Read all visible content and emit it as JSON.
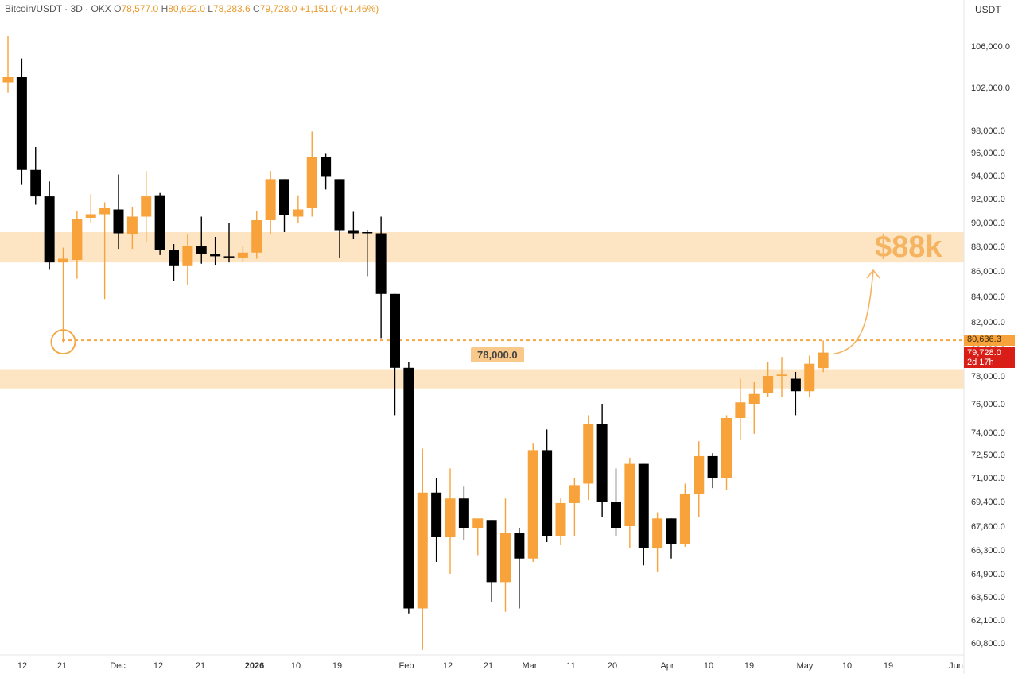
{
  "header": {
    "symbol": "Bitcoin/USDT · 3D · OKX",
    "o_label": "O",
    "o_value": "78,577.0",
    "h_label": "H",
    "h_value": "80,622.0",
    "l_label": "L",
    "l_value": "78,283.6",
    "c_label": "C",
    "c_value": "79,728.0",
    "change": "+1,151.0 (+1.46%)"
  },
  "axis_unit": "USDT",
  "annotations": {
    "target_text": "$88k",
    "level_label": "78,000.0",
    "price_tag_high": "80,636.3",
    "price_tag_last": "79,728.0",
    "countdown": "2d 17h"
  },
  "colors": {
    "up": "#f7a23a",
    "down": "#000000",
    "zone": "#fde5c4",
    "dotted": "#f3a846",
    "last_tag": "#d91e18"
  },
  "chart_data": {
    "type": "candlestick",
    "y_ticks": [
      "106,000.0",
      "102,000.0",
      "98,000.0",
      "96,000.0",
      "94,000.0",
      "92,000.0",
      "90,000.0",
      "88,000.0",
      "86,000.0",
      "84,000.0",
      "82,000.0",
      "80,000.0",
      "78,000.0",
      "76,000.0",
      "74,000.0",
      "72,500.0",
      "71,000.0",
      "69,400.0",
      "67,800.0",
      "66,300.0",
      "64,900.0",
      "63,500.0",
      "62,100.0",
      "60,800.0"
    ],
    "x_ticks": [
      "12",
      "21",
      "Dec",
      "12",
      "21",
      "2026",
      "10",
      "19",
      "Feb",
      "12",
      "21",
      "Mar",
      "11",
      "20",
      "Apr",
      "10",
      "19",
      "May",
      "10",
      "19",
      "Jun"
    ],
    "zones": [
      {
        "from": 86700,
        "to": 89200
      },
      {
        "from": 77100,
        "to": 78500
      }
    ],
    "dotted_level": 80636.3,
    "target": 88000,
    "candles": [
      {
        "o": 102500,
        "h": 107000,
        "l": 101500,
        "c": 103000
      },
      {
        "o": 103000,
        "h": 104800,
        "l": 93200,
        "c": 94500
      },
      {
        "o": 94500,
        "h": 96500,
        "l": 91500,
        "c": 92200
      },
      {
        "o": 92200,
        "h": 93500,
        "l": 86100,
        "c": 86700
      },
      {
        "o": 86700,
        "h": 87900,
        "l": 80500,
        "c": 87000
      },
      {
        "o": 86900,
        "h": 91000,
        "l": 85400,
        "c": 90300
      },
      {
        "o": 90400,
        "h": 92400,
        "l": 90000,
        "c": 90700
      },
      {
        "o": 90700,
        "h": 91700,
        "l": 83800,
        "c": 91200
      },
      {
        "o": 91100,
        "h": 94100,
        "l": 87800,
        "c": 89100
      },
      {
        "o": 89000,
        "h": 91300,
        "l": 87800,
        "c": 90500
      },
      {
        "o": 90500,
        "h": 94400,
        "l": 88400,
        "c": 92200
      },
      {
        "o": 92300,
        "h": 92500,
        "l": 87300,
        "c": 87700
      },
      {
        "o": 87700,
        "h": 88200,
        "l": 85200,
        "c": 86400
      },
      {
        "o": 86400,
        "h": 89000,
        "l": 84900,
        "c": 88000
      },
      {
        "o": 88000,
        "h": 90500,
        "l": 86600,
        "c": 87400
      },
      {
        "o": 87400,
        "h": 88800,
        "l": 86500,
        "c": 87200
      },
      {
        "o": 87200,
        "h": 90000,
        "l": 86700,
        "c": 87100
      },
      {
        "o": 87100,
        "h": 88000,
        "l": 86700,
        "c": 87500
      },
      {
        "o": 87500,
        "h": 91000,
        "l": 87000,
        "c": 90200
      },
      {
        "o": 90200,
        "h": 94400,
        "l": 89000,
        "c": 93700
      },
      {
        "o": 93700,
        "h": 93700,
        "l": 89200,
        "c": 90600
      },
      {
        "o": 90500,
        "h": 92300,
        "l": 90000,
        "c": 91100
      },
      {
        "o": 91200,
        "h": 97900,
        "l": 90500,
        "c": 95600
      },
      {
        "o": 95600,
        "h": 95900,
        "l": 92800,
        "c": 93900
      },
      {
        "o": 93700,
        "h": 93700,
        "l": 87100,
        "c": 89300
      },
      {
        "o": 89300,
        "h": 90900,
        "l": 88600,
        "c": 89100
      },
      {
        "o": 89200,
        "h": 89400,
        "l": 85600,
        "c": 89100
      },
      {
        "o": 89100,
        "h": 90500,
        "l": 80800,
        "c": 84200
      },
      {
        "o": 84200,
        "h": 84200,
        "l": 75200,
        "c": 78600
      },
      {
        "o": 78600,
        "h": 79000,
        "l": 62500,
        "c": 62800
      },
      {
        "o": 62800,
        "h": 72900,
        "l": 60400,
        "c": 70000
      },
      {
        "o": 70000,
        "h": 71000,
        "l": 65600,
        "c": 67100
      },
      {
        "o": 67100,
        "h": 71600,
        "l": 64900,
        "c": 69600
      },
      {
        "o": 69600,
        "h": 70400,
        "l": 66900,
        "c": 67700
      },
      {
        "o": 67700,
        "h": 67900,
        "l": 66000,
        "c": 68300
      },
      {
        "o": 68200,
        "h": 68200,
        "l": 63200,
        "c": 64400
      },
      {
        "o": 64400,
        "h": 69600,
        "l": 62600,
        "c": 67400
      },
      {
        "o": 67400,
        "h": 67700,
        "l": 62800,
        "c": 65800
      },
      {
        "o": 65800,
        "h": 73300,
        "l": 65600,
        "c": 72800
      },
      {
        "o": 72800,
        "h": 74200,
        "l": 66800,
        "c": 67200
      },
      {
        "o": 67200,
        "h": 69600,
        "l": 66600,
        "c": 69300
      },
      {
        "o": 69300,
        "h": 71000,
        "l": 67200,
        "c": 70500
      },
      {
        "o": 70600,
        "h": 75200,
        "l": 69500,
        "c": 74600
      },
      {
        "o": 74600,
        "h": 76000,
        "l": 68400,
        "c": 69400
      },
      {
        "o": 69400,
        "h": 71600,
        "l": 67200,
        "c": 67700
      },
      {
        "o": 67800,
        "h": 72300,
        "l": 66400,
        "c": 71900
      },
      {
        "o": 71900,
        "h": 71900,
        "l": 65400,
        "c": 66400
      },
      {
        "o": 66400,
        "h": 68700,
        "l": 65000,
        "c": 68300
      },
      {
        "o": 68300,
        "h": 68300,
        "l": 65800,
        "c": 66700
      },
      {
        "o": 66700,
        "h": 70600,
        "l": 66500,
        "c": 69900
      },
      {
        "o": 69900,
        "h": 73400,
        "l": 68400,
        "c": 72400
      },
      {
        "o": 72400,
        "h": 72600,
        "l": 70300,
        "c": 71000
      },
      {
        "o": 71000,
        "h": 75200,
        "l": 70200,
        "c": 75000
      },
      {
        "o": 75000,
        "h": 77800,
        "l": 73500,
        "c": 76100
      },
      {
        "o": 76000,
        "h": 77600,
        "l": 73900,
        "c": 76700
      },
      {
        "o": 76800,
        "h": 79000,
        "l": 76500,
        "c": 78000
      },
      {
        "o": 78000,
        "h": 79400,
        "l": 76500,
        "c": 78100
      },
      {
        "o": 77800,
        "h": 78300,
        "l": 75200,
        "c": 76900
      },
      {
        "o": 76900,
        "h": 79500,
        "l": 76500,
        "c": 78900
      },
      {
        "o": 78577,
        "h": 80622,
        "l": 78283.6,
        "c": 79728
      }
    ]
  }
}
